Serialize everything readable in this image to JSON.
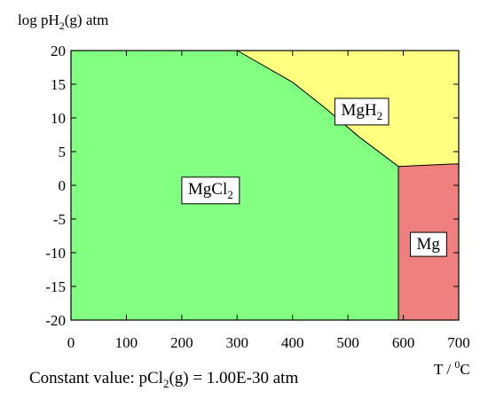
{
  "chart_data": {
    "type": "area",
    "title": "",
    "xlabel": "T / °C",
    "xlabel_parts": {
      "main": "T / ",
      "sup": "0",
      "tail": "C"
    },
    "ylabel": "log pH2(g) atm",
    "ylabel_parts": {
      "pre": "log pH",
      "sub": "2",
      "post": "(g) atm"
    },
    "xlim": [
      0,
      700
    ],
    "ylim": [
      -20,
      20
    ],
    "x_ticks": [
      0,
      100,
      200,
      300,
      400,
      500,
      600,
      700
    ],
    "y_ticks": [
      20,
      15,
      10,
      5,
      0,
      -5,
      -10,
      -15,
      -20
    ],
    "grid": false,
    "legend": "none",
    "note": "Constant value: pCl2(g) = 1.00E-30 atm",
    "note_parts": {
      "pre": "Constant value: pCl",
      "sub": "2",
      "post": "(g) = 1.00E-30 atm"
    },
    "regions": [
      {
        "name": "MgCl2",
        "label_main": "MgCl",
        "label_sub": "2",
        "color": "#80ff80",
        "label_at": [
          252,
          -0.5
        ],
        "polygon": [
          [
            0,
            20
          ],
          [
            300,
            20
          ],
          [
            400,
            15.3
          ],
          [
            460,
            11.4
          ],
          [
            520,
            7.2
          ],
          [
            591,
            2.8
          ],
          [
            591,
            -20
          ],
          [
            0,
            -20
          ]
        ]
      },
      {
        "name": "MgH2",
        "label_main": "MgH",
        "label_sub": "2",
        "color": "#ffff80",
        "label_at": [
          525,
          11.2
        ],
        "polygon": [
          [
            300,
            20
          ],
          [
            700,
            20
          ],
          [
            700,
            3.2
          ],
          [
            591,
            2.8
          ],
          [
            520,
            7.2
          ],
          [
            460,
            11.4
          ],
          [
            400,
            15.3
          ]
        ]
      },
      {
        "name": "Mg",
        "label_main": "Mg",
        "label_sub": "",
        "color": "#f08080",
        "label_at": [
          645,
          -8.7
        ],
        "polygon": [
          [
            591,
            2.8
          ],
          [
            700,
            3.2
          ],
          [
            700,
            -20
          ],
          [
            591,
            -20
          ]
        ]
      }
    ],
    "boundaries": [
      [
        [
          300,
          20
        ],
        [
          400,
          15.3
        ],
        [
          460,
          11.4
        ],
        [
          520,
          7.2
        ],
        [
          591,
          2.8
        ]
      ],
      [
        [
          591,
          2.8
        ],
        [
          700,
          3.2
        ]
      ],
      [
        [
          591,
          2.8
        ],
        [
          591,
          -20
        ]
      ]
    ]
  }
}
